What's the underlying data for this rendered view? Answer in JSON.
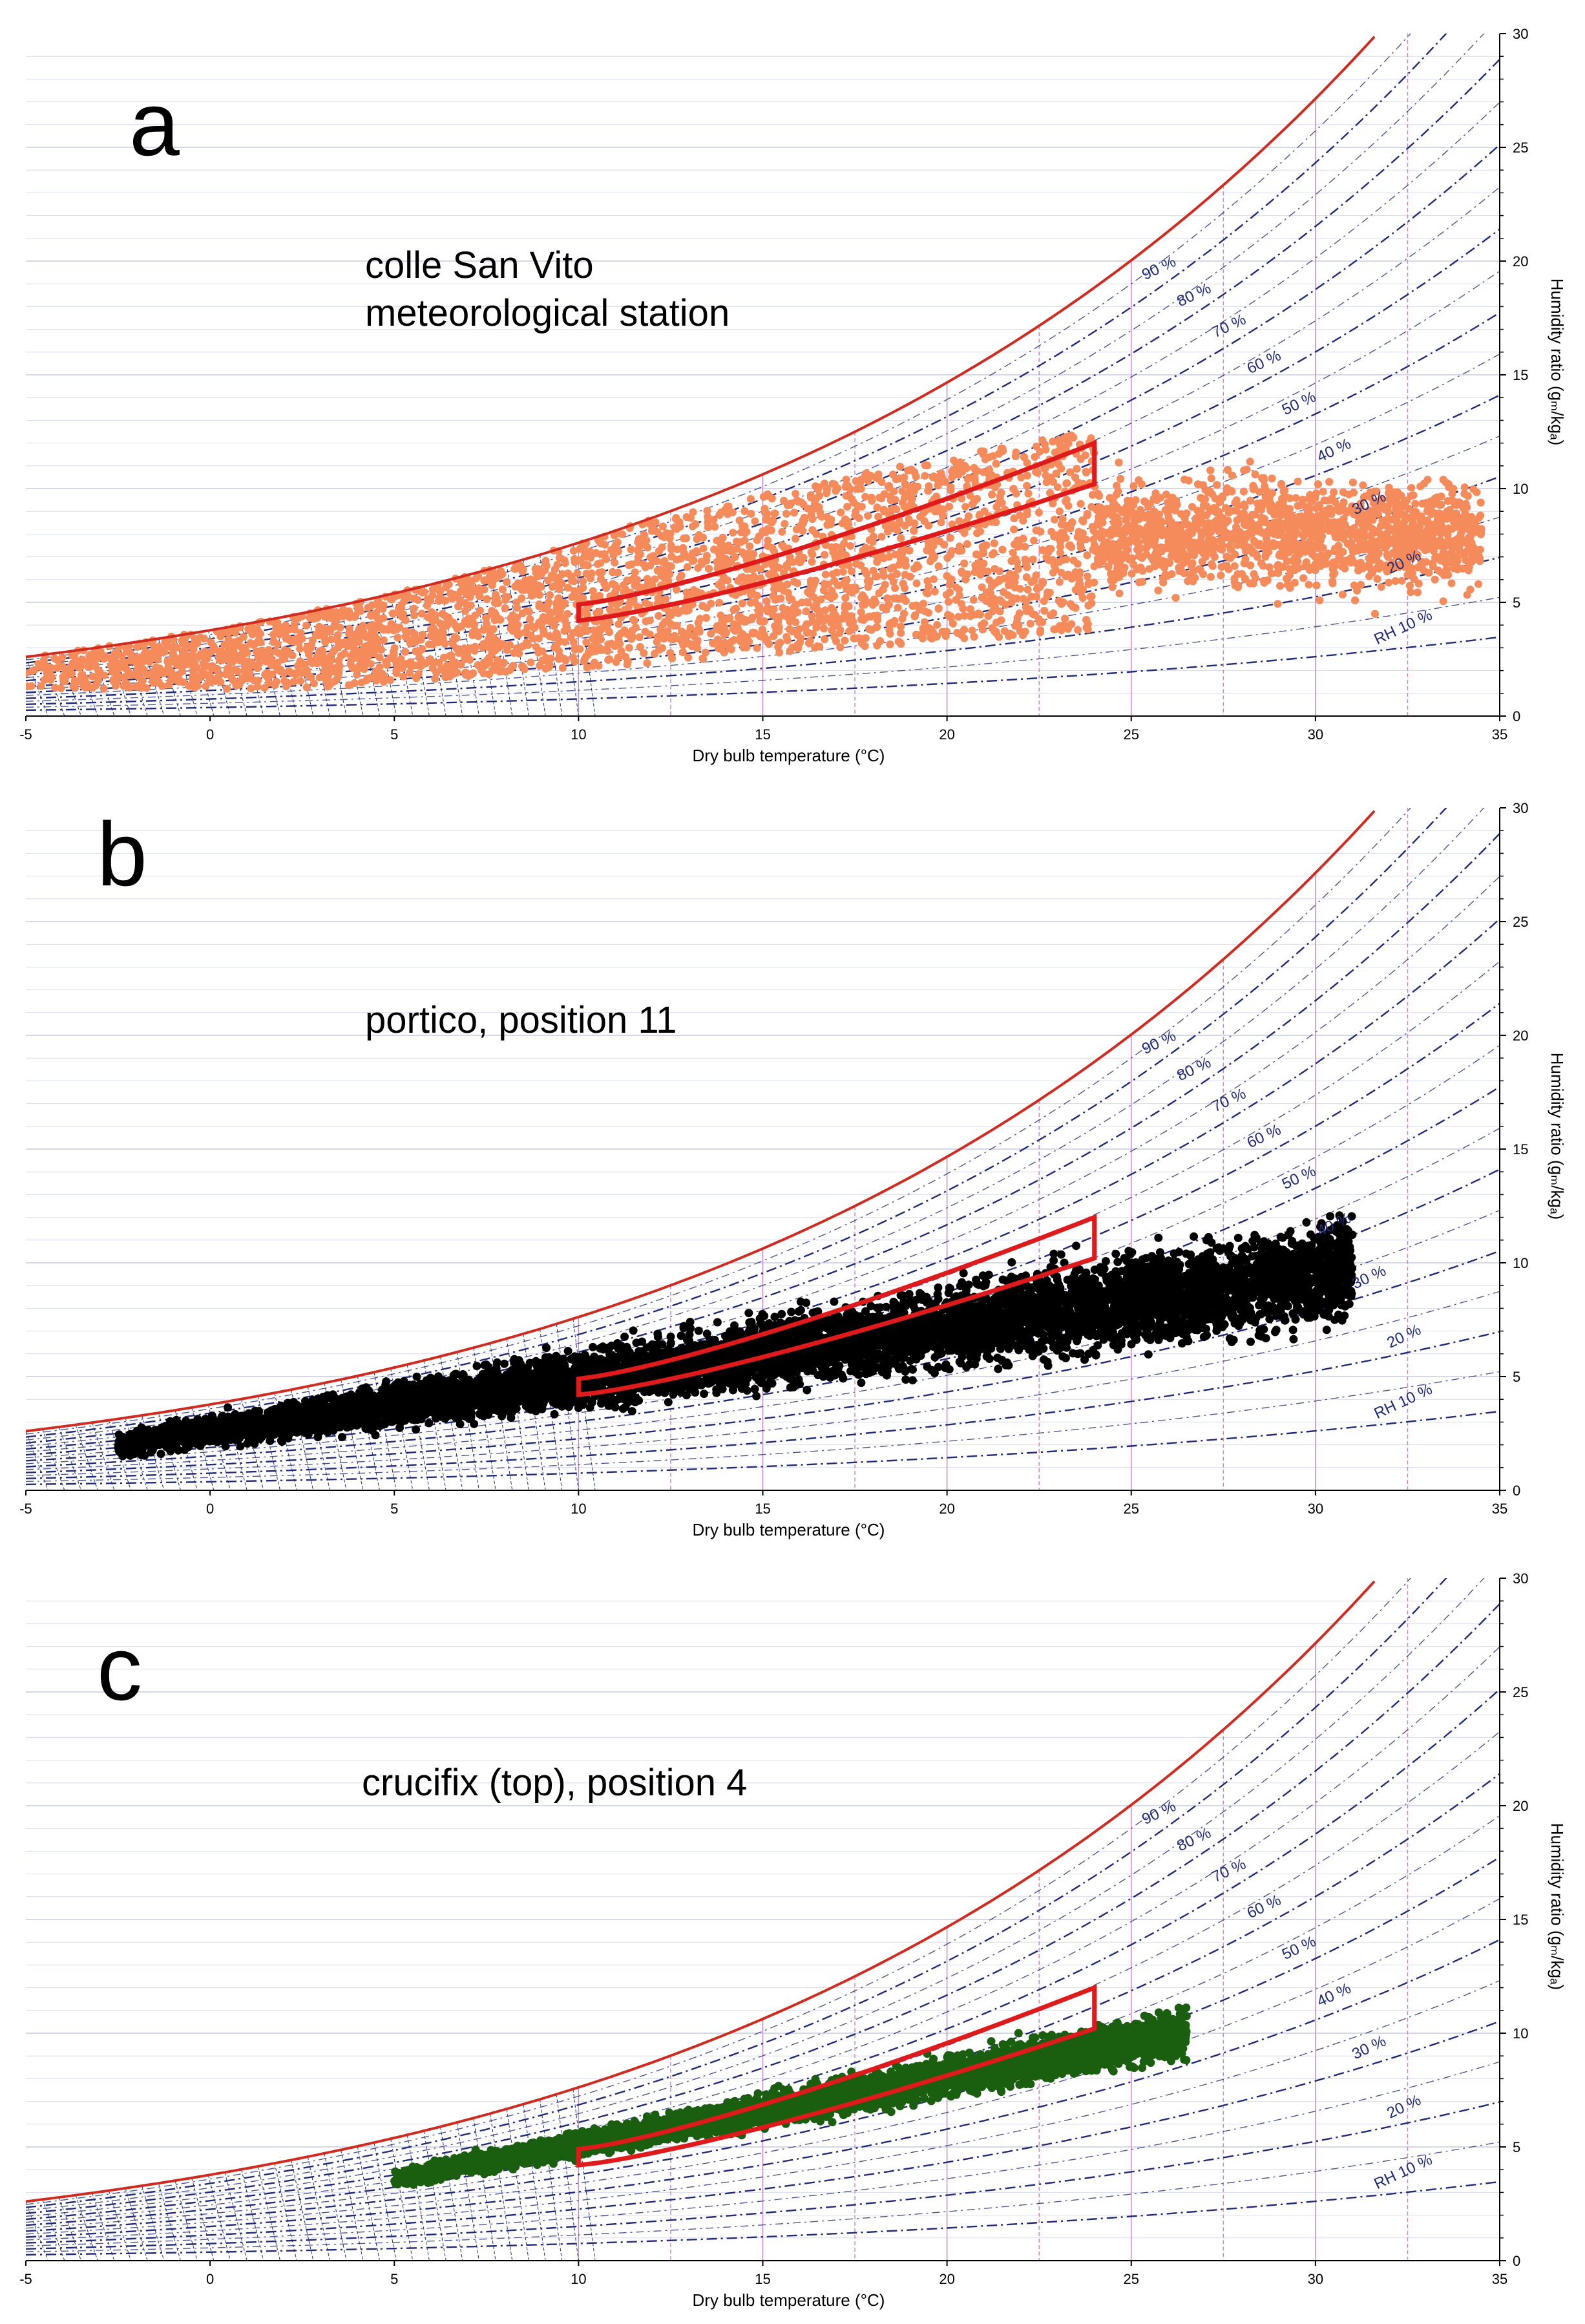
{
  "figure": {
    "common": {
      "xlabel": "Dry bulb temperature (°C)",
      "ylabel": "Humidity ratio (gₘ/kgₐ)",
      "xlim": [
        -5,
        35
      ],
      "ylim": [
        0,
        30
      ],
      "x_ticks": [
        -5,
        0,
        5,
        10,
        15,
        20,
        25,
        30,
        35
      ],
      "y_ticks": [
        0,
        5,
        10,
        15,
        20,
        25,
        30
      ],
      "rh_curves": [
        10,
        20,
        30,
        40,
        50,
        60,
        70,
        80,
        90
      ],
      "rh_labels": [
        "RH 10 %",
        "20 %",
        "30 %",
        "40 %",
        "50 %",
        "60 %",
        "70 %",
        "80 %",
        "90 %"
      ],
      "saturation_color": "#d22a1e",
      "rh_color": "#1f2b7a",
      "grid_color": "#cc88cc",
      "comfort_zone": {
        "temperature_range": [
          10,
          24
        ],
        "humidity_ratio_bounds": {
          "at_10C": [
            4.2,
            4.9
          ],
          "at_24C": [
            10.2,
            12.0
          ]
        },
        "color": "#e0191a"
      }
    }
  },
  "chart_data": [
    {
      "type": "scatter",
      "panel": "a",
      "title": "colle San Vito\nmeteorological station",
      "title_lines": [
        "colle San Vito",
        "meteorological station"
      ],
      "xlabel": "Dry bulb temperature (°C)",
      "ylabel": "Humidity ratio (gₘ/kgₐ)",
      "xlim": [
        -5,
        35
      ],
      "ylim": [
        0,
        30
      ],
      "color": "#f58a5a",
      "distribution": {
        "t_min": -5,
        "t_max": 34.5,
        "w_min": 1.2,
        "w_max": 13.5,
        "upper_limit": "saturation"
      }
    },
    {
      "type": "scatter",
      "panel": "b",
      "title": "portico, position 11",
      "title_lines": [
        "portico, position 11"
      ],
      "xlabel": "Dry bulb temperature (°C)",
      "ylabel": "Humidity ratio (gₘ/kgₐ)",
      "xlim": [
        -5,
        35
      ],
      "ylim": [
        0,
        30
      ],
      "color": "#000000",
      "distribution": {
        "t_min": -2.5,
        "t_max": 31,
        "w_min": 1.3,
        "w_max": 13.5
      }
    },
    {
      "type": "scatter",
      "panel": "c",
      "title": "crucifix (top), position 4",
      "title_lines": [
        "crucifix (top), position 4"
      ],
      "xlabel": "Dry bulb temperature (°C)",
      "ylabel": "Humidity ratio (gₘ/kgₐ)",
      "xlim": [
        -5,
        35
      ],
      "ylim": [
        0,
        30
      ],
      "color": "#1a5e0f",
      "distribution": {
        "t_min": 5,
        "t_max": 26.5,
        "w_min": 3.1,
        "w_max": 12.3
      }
    }
  ]
}
